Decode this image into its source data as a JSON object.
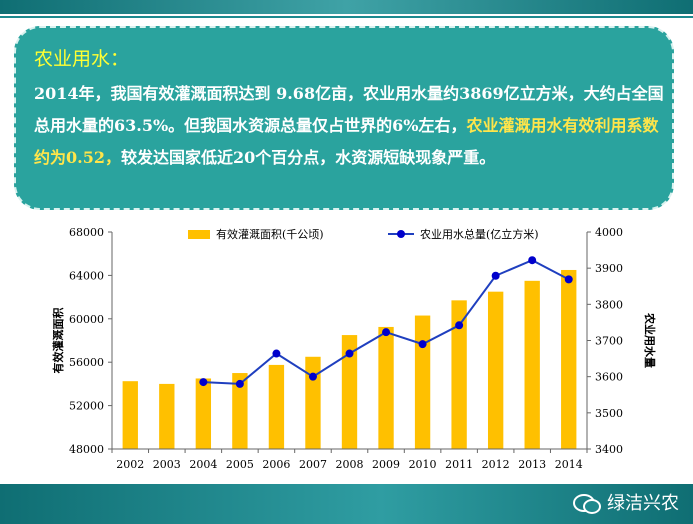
{
  "callout": {
    "title": "农业用水：",
    "text_part1": "2014年，我国有效灌溉面积达到 9.68亿亩，农业用水量约3869亿立方米，大约占全国总用水量的63.5%。但我国水资源总量仅占世界的6%左右，",
    "text_highlight": "农业灌溉用水有效利用系数约为0.52，",
    "text_part2": "较发达国家低近20个百分点，水资源短缺现象严重。"
  },
  "watermark": {
    "text": "绿洁兴农",
    "icon": "wechat-icon"
  },
  "chart_data": {
    "type": "bar+line",
    "categories": [
      "2002",
      "2003",
      "2004",
      "2005",
      "2006",
      "2007",
      "2008",
      "2009",
      "2010",
      "2011",
      "2012",
      "2013",
      "2014"
    ],
    "series": [
      {
        "name": "有效灌溉面积(千公顷)",
        "type": "bar",
        "axis": "left",
        "values": [
          54250,
          54000,
          54500,
          55000,
          55750,
          56500,
          58500,
          59250,
          60300,
          61700,
          62500,
          63500,
          64500
        ]
      },
      {
        "name": "农业用水总量(亿立方米)",
        "type": "line",
        "axis": "right",
        "x": [
          "2004",
          "2005",
          "2006",
          "2007",
          "2008",
          "2009",
          "2010",
          "2011",
          "2012",
          "2013",
          "2014"
        ],
        "values": [
          3585,
          3580,
          3664,
          3600,
          3664,
          3723,
          3690,
          3742,
          3879,
          3922,
          3869
        ]
      }
    ],
    "y_left": {
      "label": "有效灌溉面积",
      "min": 48000,
      "max": 68000,
      "ticks": [
        "48000",
        "52000",
        "56000",
        "60000",
        "64000",
        "68000"
      ]
    },
    "y_right": {
      "label": "农业用水量",
      "min": 3400,
      "max": 4000,
      "ticks": [
        "3400",
        "3500",
        "3600",
        "3700",
        "3800",
        "3900",
        "4000"
      ]
    },
    "legend": "top-center",
    "colors": {
      "bar": "#ffc000",
      "line": "#1f3fbf",
      "marker": "#0000cc"
    }
  }
}
